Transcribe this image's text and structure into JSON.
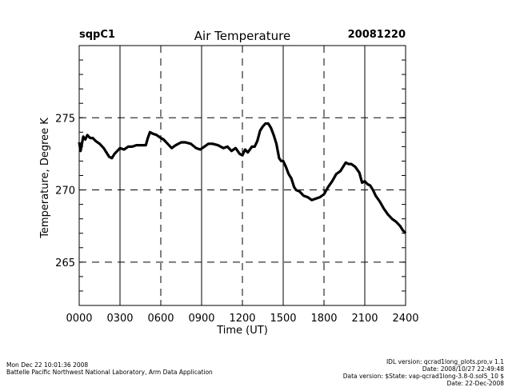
{
  "header": {
    "site": "sqpC1",
    "title": "Air Temperature",
    "date": "20081220"
  },
  "footer": {
    "left": [
      "Mon Dec 22 10:01:36 2008",
      "Battelle Pacific Northwest National Laboratory, Arm Data Application"
    ],
    "right": [
      "IDL version: qcrad1long_plots.pro,v 1.1",
      "Date: 2008/10/27 22:49:48",
      "Data version: $State: vap-qcrad1long-3.8-0.sol5_10 $",
      "Date: 22-Dec-2008"
    ]
  },
  "chart_data": {
    "type": "line",
    "title": "Air Temperature",
    "xlabel": "Time (UT)",
    "ylabel": "Temperature, Degree K",
    "xlim": [
      0,
      24
    ],
    "ylim": [
      262,
      280
    ],
    "x_ticks": [
      0,
      3,
      6,
      9,
      12,
      15,
      18,
      21,
      24
    ],
    "x_tick_labels": [
      "0000",
      "0300",
      "0600",
      "0900",
      "1200",
      "1500",
      "1800",
      "2100",
      "2400"
    ],
    "y_ticks": [
      265,
      270,
      275
    ],
    "y_tick_labels": [
      "265",
      "270",
      "275"
    ],
    "grid": true,
    "series": [
      {
        "name": "Air Temperature",
        "x": [
          0.0,
          0.1,
          0.2,
          0.3,
          0.45,
          0.6,
          0.8,
          1.0,
          1.2,
          1.5,
          1.8,
          2.0,
          2.2,
          2.4,
          2.6,
          2.8,
          3.0,
          3.3,
          3.6,
          3.9,
          4.2,
          4.5,
          4.9,
          5.05,
          5.2,
          5.4,
          5.7,
          6.0,
          6.2,
          6.5,
          6.8,
          7.1,
          7.5,
          7.8,
          8.2,
          8.6,
          8.9,
          9.2,
          9.5,
          9.8,
          10.2,
          10.6,
          10.9,
          11.2,
          11.5,
          11.8,
          12.0,
          12.2,
          12.4,
          12.7,
          12.9,
          13.1,
          13.3,
          13.5,
          13.7,
          13.9,
          14.1,
          14.3,
          14.5,
          14.7,
          14.85,
          15.0,
          15.2,
          15.4,
          15.6,
          15.8,
          15.95,
          16.2,
          16.5,
          16.8,
          17.1,
          17.4,
          17.7,
          18.0,
          18.3,
          18.6,
          18.9,
          19.2,
          19.4,
          19.6,
          19.8,
          20.0,
          20.3,
          20.6,
          20.8,
          21.0,
          21.2,
          21.4,
          21.6,
          21.8,
          22.1,
          22.4,
          22.7,
          23.0,
          23.3,
          23.6,
          23.8,
          24.0
        ],
        "y": [
          273.3,
          272.7,
          273.2,
          273.7,
          273.5,
          273.8,
          273.6,
          273.6,
          273.4,
          273.2,
          272.9,
          272.6,
          272.3,
          272.2,
          272.5,
          272.7,
          272.9,
          272.8,
          273.0,
          273.0,
          273.1,
          273.1,
          273.1,
          273.6,
          274.0,
          273.9,
          273.8,
          273.6,
          273.5,
          273.2,
          272.9,
          273.1,
          273.3,
          273.3,
          273.2,
          272.9,
          272.8,
          273.0,
          273.2,
          273.2,
          273.1,
          272.9,
          273.0,
          272.7,
          272.9,
          272.5,
          272.4,
          272.8,
          272.6,
          273.0,
          273.0,
          273.4,
          274.1,
          274.4,
          274.6,
          274.6,
          274.3,
          273.8,
          273.2,
          272.2,
          272.0,
          272.0,
          271.6,
          271.1,
          270.8,
          270.2,
          270.0,
          269.9,
          269.6,
          269.5,
          269.3,
          269.4,
          269.5,
          269.7,
          270.2,
          270.6,
          271.1,
          271.3,
          271.6,
          271.9,
          271.8,
          271.8,
          271.6,
          271.2,
          270.5,
          270.6,
          270.4,
          270.3,
          270.0,
          269.6,
          269.2,
          268.7,
          268.3,
          268.0,
          267.8,
          267.5,
          267.2,
          267.0
        ]
      }
    ]
  }
}
